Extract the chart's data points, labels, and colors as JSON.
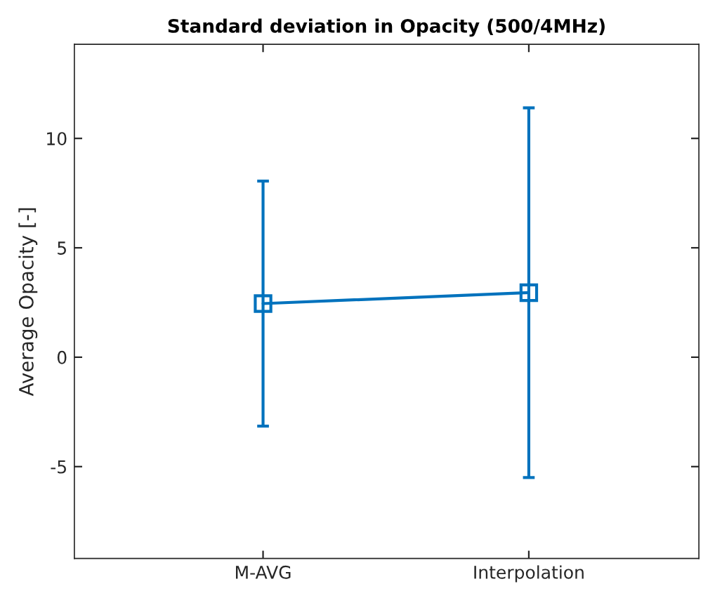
{
  "chart_data": {
    "type": "line",
    "title": "Standard deviation in Opacity (500/4MHz)",
    "ylabel": "Average Opacity [-]",
    "categories": [
      "M-AVG",
      "Interpolation"
    ],
    "series": [
      {
        "color": "#0072bd",
        "values": [
          2.45,
          2.95
        ],
        "errors": [
          5.6,
          8.45
        ]
      }
    ],
    "marker": "square",
    "line_style": "solid",
    "ylim": [
      -9.2,
      14.3
    ],
    "yticks": [
      {
        "value": -5,
        "label": "-5"
      },
      0,
      5,
      10
    ],
    "grid": false,
    "legend": false
  }
}
